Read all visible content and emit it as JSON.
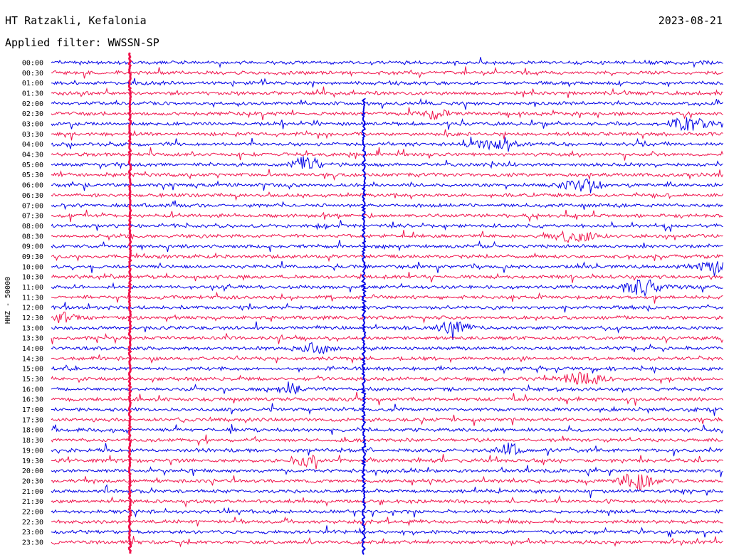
{
  "header": {
    "station": "HT Ratzakli, Kefalonia",
    "date": "2023-08-21",
    "filter": "Applied filter: WWSSN-SP"
  },
  "chart_data": {
    "type": "line",
    "chart_kind": "helicorder",
    "ylabel": "HHZ - 50000",
    "row_labels": [
      "00:00",
      "00:30",
      "01:00",
      "01:30",
      "02:00",
      "02:30",
      "03:00",
      "03:30",
      "04:00",
      "04:30",
      "05:00",
      "05:30",
      "06:00",
      "06:30",
      "07:00",
      "07:30",
      "08:00",
      "08:30",
      "09:00",
      "09:30",
      "10:00",
      "10:30",
      "11:00",
      "11:30",
      "12:00",
      "12:30",
      "13:00",
      "13:30",
      "14:00",
      "14:30",
      "15:00",
      "15:30",
      "16:00",
      "16:30",
      "17:00",
      "17:30",
      "18:00",
      "18:30",
      "19:00",
      "19:30",
      "20:00",
      "20:30",
      "21:00",
      "21:30",
      "22:00",
      "22:30",
      "23:00",
      "23:30"
    ],
    "colors": [
      "#0000e6",
      "#f0124b"
    ],
    "grid": false,
    "events": [
      {
        "row_start": "00:00",
        "row_end": "23:30",
        "position": 0.117,
        "description": "continuous high-amplitude vertical trace"
      },
      {
        "row_start": "02:00",
        "row_end": "23:30",
        "position": 0.465,
        "description": "continuous high-amplitude vertical trace"
      },
      {
        "row": "02:30",
        "position": 0.57
      },
      {
        "row": "03:00",
        "position": 0.95
      },
      {
        "row": "04:00",
        "position": 0.66
      },
      {
        "row": "05:00",
        "position": 0.38
      },
      {
        "row": "06:00",
        "position": 0.79
      },
      {
        "row": "08:30",
        "position": 0.78
      },
      {
        "row": "10:00",
        "position": 0.99
      },
      {
        "row": "11:00",
        "position": 0.88
      },
      {
        "row": "12:30",
        "position": 0.02
      },
      {
        "row": "13:00",
        "position": 0.6
      },
      {
        "row": "14:00",
        "position": 0.39
      },
      {
        "row": "15:30",
        "position": 0.79
      },
      {
        "row": "16:00",
        "position": 0.35
      },
      {
        "row": "19:00",
        "position": 0.68
      },
      {
        "row": "19:30",
        "position": 0.38
      },
      {
        "row": "20:30",
        "position": 0.87
      }
    ]
  }
}
